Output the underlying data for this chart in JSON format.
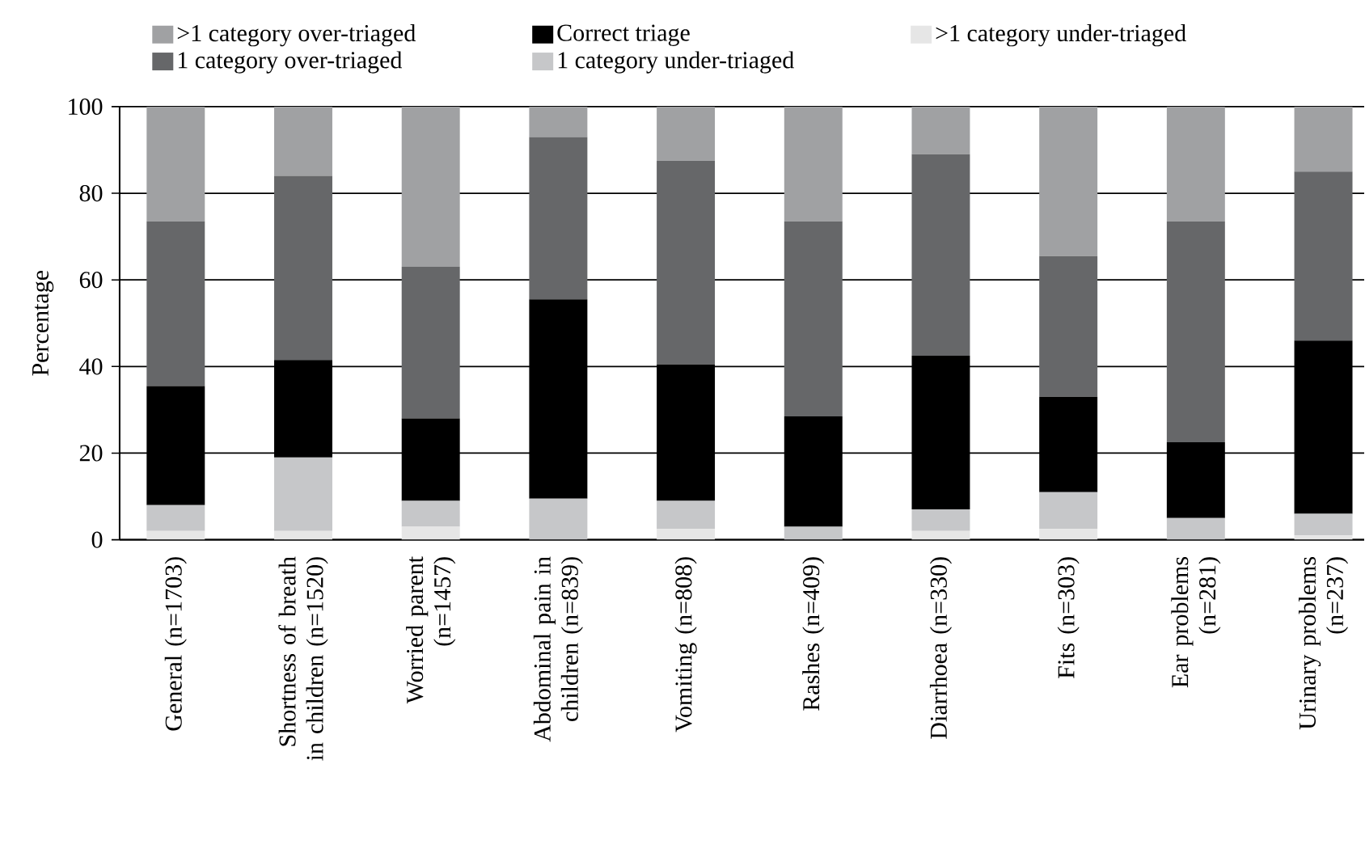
{
  "chart_data": {
    "type": "bar",
    "stacked": true,
    "ylabel": "Percentage",
    "categories": [
      "General (n=1703)",
      "Shortness of breath in children (n=1520)",
      "Worried parent (n=1457)",
      "Abdominal pain in children (n=839)",
      "Vomiting (n=808)",
      "Rashes (n=409)",
      "Diarrhoea (n=330)",
      "Fits (n=303)",
      "Ear problems (n=281)",
      "Urinary problems (n=237)"
    ],
    "series": [
      {
        "name": ">1 category under-triaged",
        "color": "#e6e6e6",
        "values": [
          2,
          2,
          3,
          0,
          2.5,
          0,
          2,
          2.5,
          0,
          1
        ]
      },
      {
        "name": "1 category under-triaged",
        "color": "#c6c7c9",
        "values": [
          6,
          17,
          6,
          9.5,
          6.5,
          3,
          5,
          8.5,
          5,
          5
        ]
      },
      {
        "name": "Correct triage",
        "color": "#000000",
        "values": [
          27.5,
          22.5,
          19,
          46,
          31.5,
          25.5,
          35.5,
          22,
          17.5,
          40
        ]
      },
      {
        "name": "1 category over-triaged",
        "color": "#666769",
        "values": [
          38,
          42.5,
          35,
          37.5,
          47,
          45,
          46.5,
          32.5,
          51,
          39
        ]
      },
      {
        "name": ">1 category over-triaged",
        "color": "#a0a1a3",
        "values": [
          26.5,
          16,
          37,
          7,
          12.5,
          26.5,
          11,
          34.5,
          26.5,
          15
        ]
      }
    ],
    "ylim": [
      0,
      100
    ],
    "yticks": [
      0,
      20,
      40,
      60,
      80,
      100
    ],
    "grid": "y",
    "legend": "top"
  }
}
